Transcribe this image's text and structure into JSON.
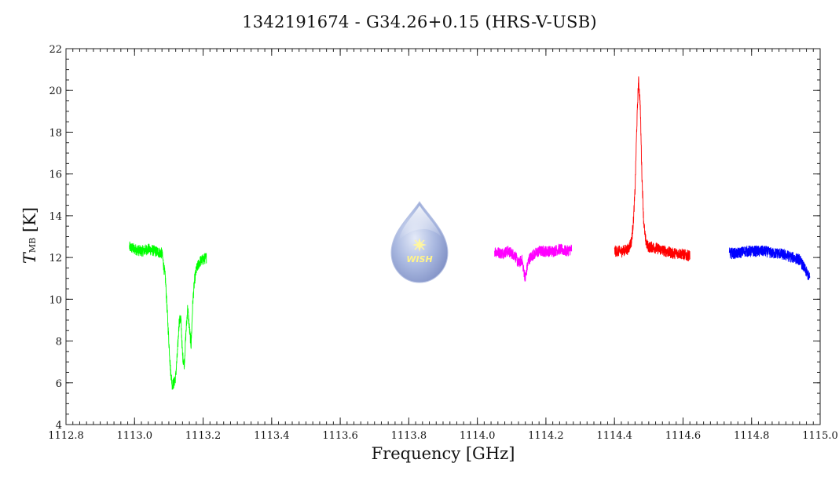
{
  "title": "1342191674 - G34.26+0.15 (HRS-V-USB)",
  "chart_data": {
    "type": "line",
    "title": "1342191674 - G34.26+0.15 (HRS-V-USB)",
    "xlabel": "Frequency [GHz]",
    "ylabel_symbol": "T",
    "ylabel_subscript": "MB",
    "ylabel_unit": "[K]",
    "xlim": [
      1112.8,
      1115.0
    ],
    "ylim": [
      4,
      22
    ],
    "xticks": [
      1112.8,
      1113.0,
      1113.2,
      1113.4,
      1113.6,
      1113.8,
      1114.0,
      1114.2,
      1114.4,
      1114.6,
      1114.8,
      1115.0
    ],
    "xtick_labels": [
      "1112.8",
      "1113.0",
      "1113.2",
      "1113.4",
      "1113.6",
      "1113.8",
      "1114.0",
      "1114.2",
      "1114.4",
      "1114.6",
      "1114.8",
      "1115.0"
    ],
    "yticks": [
      4,
      6,
      8,
      10,
      12,
      14,
      16,
      18,
      20,
      22
    ],
    "ytick_labels": [
      "4",
      "6",
      "8",
      "10",
      "12",
      "14",
      "16",
      "18",
      "20",
      "22"
    ],
    "grid": false,
    "logo_text": "WISH",
    "series": [
      {
        "color": "#00ff00",
        "x": [
          1112.985,
          1113.0,
          1113.02,
          1113.04,
          1113.06,
          1113.08,
          1113.09,
          1113.095,
          1113.1,
          1113.105,
          1113.11,
          1113.115,
          1113.12,
          1113.125,
          1113.13,
          1113.135,
          1113.14,
          1113.145,
          1113.15,
          1113.155,
          1113.16,
          1113.165,
          1113.17,
          1113.175,
          1113.18,
          1113.19,
          1113.2,
          1113.21
        ],
        "y": [
          12.5,
          12.4,
          12.3,
          12.4,
          12.3,
          12.2,
          11.0,
          9.5,
          8.0,
          6.6,
          5.9,
          6.0,
          6.3,
          7.4,
          8.9,
          9.1,
          7.3,
          6.9,
          8.4,
          9.6,
          8.6,
          7.8,
          9.9,
          10.9,
          11.4,
          11.8,
          11.9,
          12.0
        ]
      },
      {
        "color": "#ff00ff",
        "x": [
          1114.05,
          1114.07,
          1114.09,
          1114.11,
          1114.12,
          1114.13,
          1114.135,
          1114.14,
          1114.145,
          1114.15,
          1114.16,
          1114.18,
          1114.2,
          1114.22,
          1114.24,
          1114.26,
          1114.275
        ],
        "y": [
          12.3,
          12.2,
          12.3,
          12.1,
          11.7,
          11.9,
          11.4,
          11.0,
          11.5,
          11.9,
          12.1,
          12.3,
          12.3,
          12.3,
          12.4,
          12.3,
          12.4
        ]
      },
      {
        "color": "#ff0000",
        "x": [
          1114.4,
          1114.42,
          1114.44,
          1114.45,
          1114.455,
          1114.46,
          1114.465,
          1114.47,
          1114.475,
          1114.48,
          1114.485,
          1114.49,
          1114.495,
          1114.5,
          1114.51,
          1114.53,
          1114.55,
          1114.57,
          1114.59,
          1114.61,
          1114.62
        ],
        "y": [
          12.3,
          12.3,
          12.4,
          12.8,
          13.7,
          15.2,
          18.2,
          20.5,
          19.4,
          16.0,
          13.8,
          12.9,
          12.6,
          12.5,
          12.5,
          12.4,
          12.3,
          12.2,
          12.2,
          12.1,
          12.1
        ]
      },
      {
        "color": "#0000ff",
        "x": [
          1114.735,
          1114.76,
          1114.78,
          1114.8,
          1114.82,
          1114.84,
          1114.86,
          1114.88,
          1114.9,
          1114.92,
          1114.94,
          1114.95,
          1114.96,
          1114.97
        ],
        "y": [
          12.2,
          12.2,
          12.3,
          12.3,
          12.3,
          12.3,
          12.2,
          12.2,
          12.1,
          12.0,
          11.9,
          11.6,
          11.3,
          11.0
        ]
      }
    ]
  }
}
